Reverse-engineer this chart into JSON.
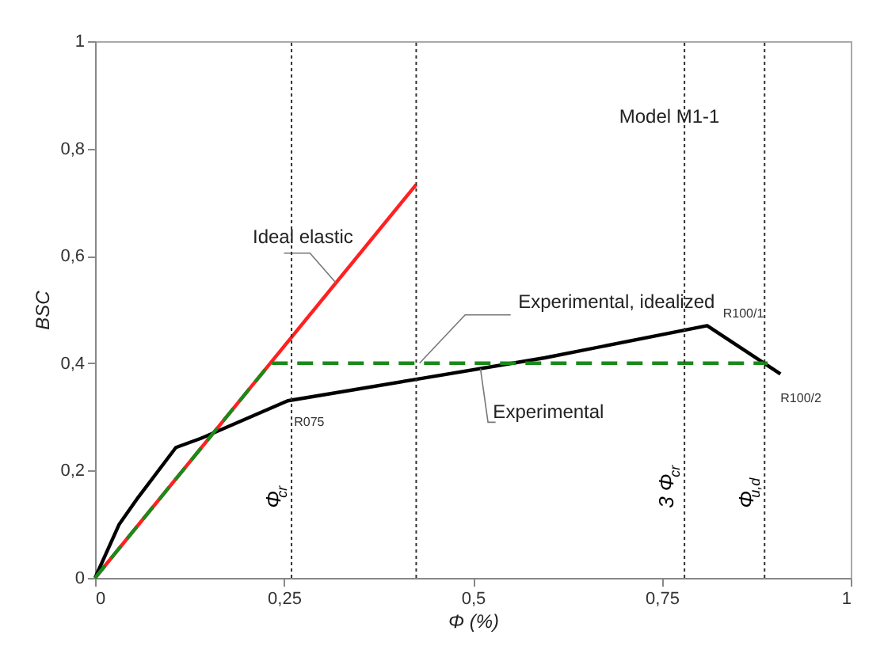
{
  "chart_data": {
    "type": "line",
    "xlabel": "Φ (%)",
    "ylabel": "BSC",
    "xlim": [
      0,
      1
    ],
    "ylim": [
      0,
      1
    ],
    "xticks": [
      0,
      {
        "value": 0.25,
        "label": "0,25"
      },
      {
        "value": 0.5,
        "label": "0,5"
      },
      {
        "value": 0.75,
        "label": "0,75"
      },
      1
    ],
    "yticks": [
      0,
      {
        "value": 0.2,
        "label": "0,2"
      },
      {
        "value": 0.4,
        "label": "0,4"
      },
      {
        "value": 0.6,
        "label": "0,6"
      },
      {
        "value": 0.8,
        "label": "0,8"
      },
      1
    ],
    "grid": false,
    "marker": "none",
    "series": [
      {
        "name": "Ideal elastic",
        "color": "#ff2020",
        "x": [
          0,
          0.425
        ],
        "values": [
          0,
          0.733
        ],
        "line_style": "solid"
      },
      {
        "name": "Experimental",
        "color": "#000000",
        "x": [
          0,
          0.032,
          0.057,
          0.107,
          0.14,
          0.255,
          0.425,
          0.595,
          0.81,
          0.907
        ],
        "values": [
          0,
          0.1,
          0.15,
          0.243,
          0.26,
          0.33,
          0.37,
          0.41,
          0.47,
          0.38
        ],
        "line_style": "solid"
      },
      {
        "name": "Experimental, idealized",
        "color": "#1a8a1a",
        "x": [
          0,
          0.232,
          0.89
        ],
        "values": [
          0,
          0.4,
          0.4
        ],
        "line_style": "dashed"
      }
    ],
    "ref_lines": [
      {
        "axis": "x",
        "value": 0.26,
        "label": "Φ$_{cr}$"
      },
      {
        "axis": "x",
        "value": 0.425
      },
      {
        "axis": "x",
        "value": 0.78,
        "label": "3 Φ$_{cr}$"
      },
      {
        "axis": "x",
        "value": 0.886,
        "label": "Φ$_{u,d}$"
      }
    ],
    "annotations": [
      "Model M1-1",
      {
        "text": "R075",
        "x": 0.255,
        "y": 0.33
      },
      {
        "text": "R100/1",
        "x": 0.81,
        "y": 0.47
      },
      {
        "text": "R100/2",
        "x": 0.907,
        "y": 0.38
      }
    ]
  }
}
